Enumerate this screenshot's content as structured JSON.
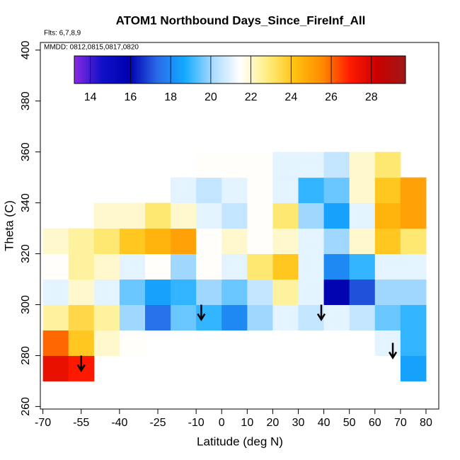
{
  "chart_data": {
    "type": "heatmap",
    "title": "ATOM1 Northbound Days_Since_FireInf_All",
    "notes": [
      "Flts: 6,7,8,9",
      "MMDD: 0812,0815,0817,0820"
    ],
    "x_label": "Latitude (deg N)",
    "y_label": "Theta (C)",
    "xlim": [
      -71,
      85
    ],
    "ylim": [
      259,
      403
    ],
    "xticks": [
      -70,
      -55,
      -40,
      -25,
      -10,
      0,
      10,
      20,
      30,
      40,
      50,
      60,
      70,
      80
    ],
    "yticks": [
      260,
      280,
      300,
      320,
      340,
      360,
      380,
      400
    ],
    "x": [
      -65,
      -55,
      -45,
      -35,
      -25,
      -15,
      -5,
      5,
      15,
      25,
      35,
      45,
      55,
      65,
      75
    ],
    "y": [
      275,
      285,
      295,
      305,
      315,
      325,
      335,
      345,
      355
    ],
    "z": [
      [
        27.5,
        27,
        null,
        null,
        null,
        null,
        null,
        null,
        null,
        null,
        null,
        null,
        null,
        null,
        18.5
      ],
      [
        26,
        24,
        22,
        21.5,
        null,
        null,
        null,
        null,
        null,
        null,
        null,
        null,
        null,
        21,
        19
      ],
      [
        22.5,
        23.5,
        22.5,
        20,
        17.5,
        19.5,
        19,
        18,
        20,
        21,
        20.5,
        21,
        20.5,
        19.5,
        19
      ],
      [
        21,
        22,
        21,
        19.5,
        18.5,
        19,
        20,
        19.5,
        20.5,
        22.5,
        21,
        16,
        17,
        20,
        20
      ],
      [
        21.5,
        22.5,
        22,
        21,
        21.5,
        20,
        21.5,
        21,
        23,
        24,
        21,
        18,
        19,
        21,
        21
      ],
      [
        22,
        22.5,
        23,
        24,
        24.5,
        25,
        21.5,
        22,
        21.5,
        22,
        21,
        20,
        22,
        24,
        23
      ],
      [
        null,
        null,
        22,
        22,
        23,
        22,
        21,
        20.5,
        21.5,
        23,
        20,
        18.5,
        21,
        24.5,
        25
      ],
      [
        null,
        null,
        null,
        null,
        null,
        21,
        20.5,
        21,
        21.5,
        21,
        19,
        19.5,
        22,
        24,
        25
      ],
      [
        null,
        null,
        null,
        null,
        null,
        null,
        21.5,
        21.5,
        21.5,
        21,
        21,
        20.5,
        22,
        23,
        null
      ]
    ],
    "markers": [
      {
        "x": -55,
        "y": 280
      },
      {
        "x": -8,
        "y": 300
      },
      {
        "x": 39,
        "y": 300
      },
      {
        "x": 67,
        "y": 285
      }
    ],
    "colorbar": {
      "range": [
        13.2,
        29.7
      ],
      "ticks": [
        14,
        16,
        18,
        20,
        22,
        24,
        26,
        28
      ],
      "colors": [
        "#8a2be2",
        "#1010c8",
        "#0000b0",
        "#2a6ae8",
        "#12aaff",
        "#a8daff",
        "#ffffff",
        "#ffee80",
        "#ffc010",
        "#ff8a00",
        "#ff1a00",
        "#c80000",
        "#a01818"
      ]
    }
  }
}
